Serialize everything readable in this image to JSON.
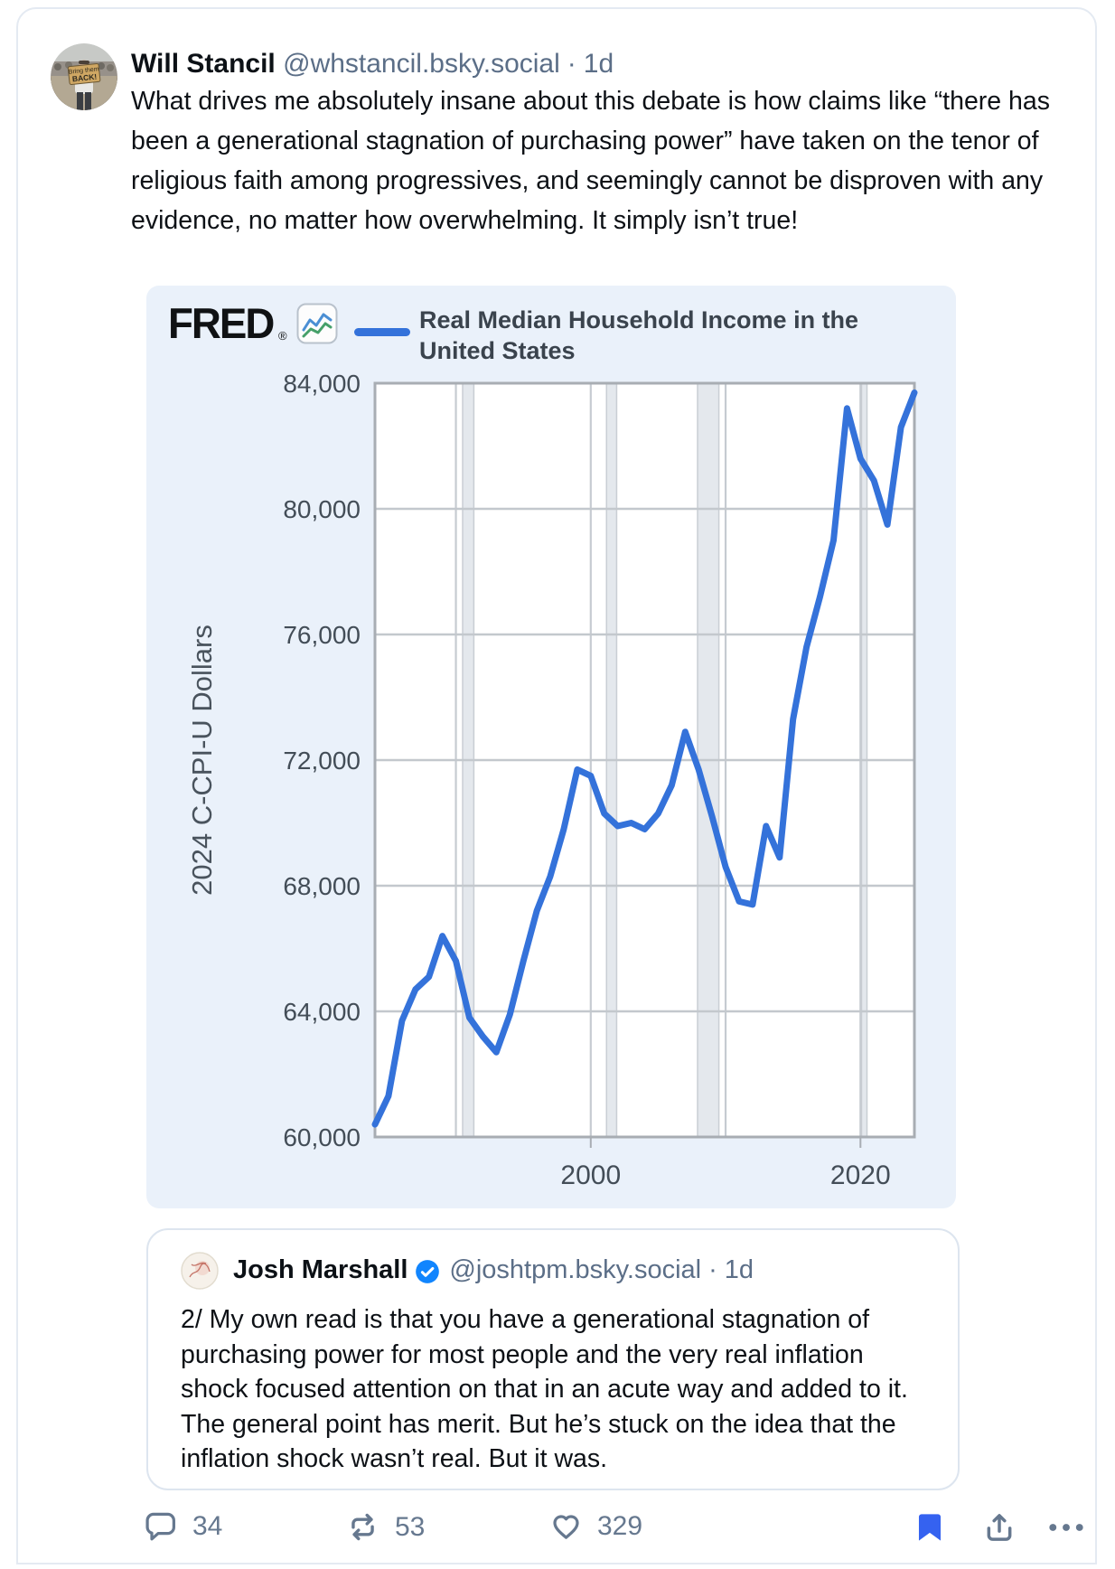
{
  "post": {
    "author": {
      "display_name": "Will Stancil",
      "handle": "@whstancil.bsky.social",
      "separator": "·",
      "timestamp": "1d",
      "avatar_sign_line1": "Bring them",
      "avatar_sign_line2": "BACK!"
    },
    "body": "What drives me absolutely insane about this debate is how claims like “there has been a generational stagnation of purchasing power” have taken on the tenor of religious faith among progressives, and seemingly cannot be disproven with any evidence, no matter how overwhelming. It simply isn’t true!"
  },
  "chart_card": {
    "logo_text": "FRED",
    "logo_mark": "®",
    "legend_label": "Real Median Household Income in the United States"
  },
  "chart_data": {
    "type": "line",
    "title": "Real Median Household Income in the United States",
    "ylabel": "2024 C-CPI-U Dollars",
    "xlabel": "",
    "xlim": [
      1984,
      2024
    ],
    "ylim": [
      60000,
      84000
    ],
    "y_ticks": [
      60000,
      64000,
      68000,
      72000,
      76000,
      80000,
      84000
    ],
    "x_ticks": [
      2000,
      2020
    ],
    "x_tick_labels": [
      "2000",
      "2020"
    ],
    "grid_years": [
      1990,
      2000,
      2010,
      2020
    ],
    "recession_bands": [
      [
        1990.5,
        1991.33
      ],
      [
        2001.17,
        2001.92
      ],
      [
        2007.92,
        2009.5
      ],
      [
        2020.08,
        2020.33
      ]
    ],
    "years": [
      1984,
      1985,
      1986,
      1987,
      1988,
      1989,
      1990,
      1991,
      1992,
      1993,
      1994,
      1995,
      1996,
      1997,
      1998,
      1999,
      2000,
      2001,
      2002,
      2003,
      2004,
      2005,
      2006,
      2007,
      2008,
      2009,
      2010,
      2011,
      2012,
      2013,
      2014,
      2015,
      2016,
      2017,
      2018,
      2019,
      2020,
      2021,
      2022,
      2023,
      2024
    ],
    "values": [
      60400,
      61300,
      63700,
      64700,
      65100,
      66400,
      65600,
      63800,
      63200,
      62700,
      63900,
      65600,
      67200,
      68300,
      69800,
      71700,
      71500,
      70300,
      69900,
      70000,
      69800,
      70300,
      71200,
      72900,
      71700,
      70200,
      68600,
      67500,
      67400,
      69900,
      68900,
      73300,
      75600,
      77200,
      79000,
      83200,
      81600,
      80900,
      79500,
      82600,
      83700
    ],
    "line_color": "#3472DA",
    "legend_position": "top",
    "grid": true
  },
  "quote": {
    "author": {
      "display_name": "Josh Marshall",
      "handle": "@joshtpm.bsky.social",
      "separator": "·",
      "timestamp": "1d",
      "verified": true
    },
    "body": "2/ My own read is that you have a generational stagnation of purchasing power for most people and the very real inflation shock focused attention on that in an acute way and added to it. The general point has merit. But he’s stuck on the idea that the inflation shock wasn’t real. But it was."
  },
  "engagement": {
    "reply_count": "34",
    "repost_count": "53",
    "like_count": "329"
  },
  "colors": {
    "accent_blue": "#1185fe",
    "line_blue": "#3472DA",
    "bookmark_blue": "#3562f0",
    "icon_gray": "#66788f",
    "chart_bg": "#eaf1fa"
  }
}
